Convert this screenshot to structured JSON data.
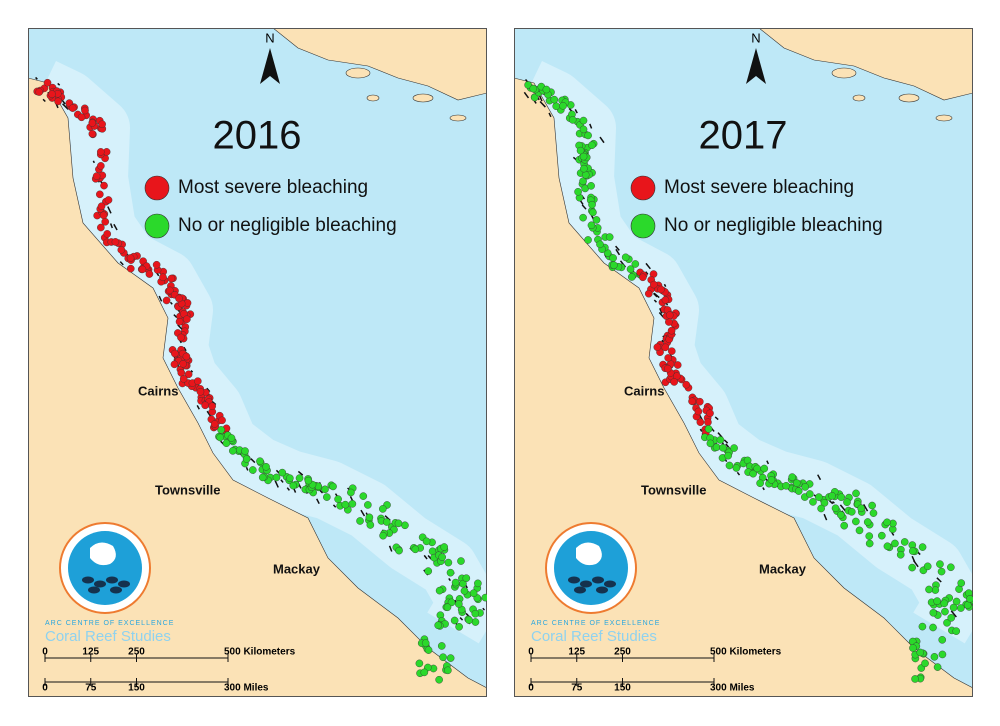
{
  "panels": [
    {
      "year": "2016",
      "legend": [
        {
          "label": "Most severe bleaching",
          "color": "#e8151b"
        },
        {
          "label": "No or negligible bleaching",
          "color": "#2bd92b"
        }
      ],
      "cities": [
        "Cairns",
        "Townsville",
        "Mackay"
      ],
      "north": "N",
      "logo": {
        "line1": "ARC CENTRE OF EXCELLENCE",
        "line2": "Coral Reef Studies"
      },
      "scale": {
        "km": [
          0,
          125,
          250,
          {
            "value": 500,
            "label": "500 Kilometers"
          }
        ],
        "mi": [
          0,
          75,
          150,
          {
            "value": 300,
            "label": "300 Miles"
          }
        ]
      }
    },
    {
      "year": "2017",
      "legend": [
        {
          "label": "Most severe bleaching",
          "color": "#e8151b"
        },
        {
          "label": "No or negligible bleaching",
          "color": "#2bd92b"
        }
      ],
      "cities": [
        "Cairns",
        "Townsville",
        "Mackay"
      ],
      "north": "N",
      "logo": {
        "line1": "ARC CENTRE OF EXCELLENCE",
        "line2": "Coral Reef Studies"
      },
      "scale": {
        "km": [
          0,
          125,
          250,
          {
            "value": 500,
            "label": "500 Kilometers"
          }
        ],
        "mi": [
          0,
          75,
          150,
          {
            "value": 300,
            "label": "300 Miles"
          }
        ]
      }
    }
  ]
}
